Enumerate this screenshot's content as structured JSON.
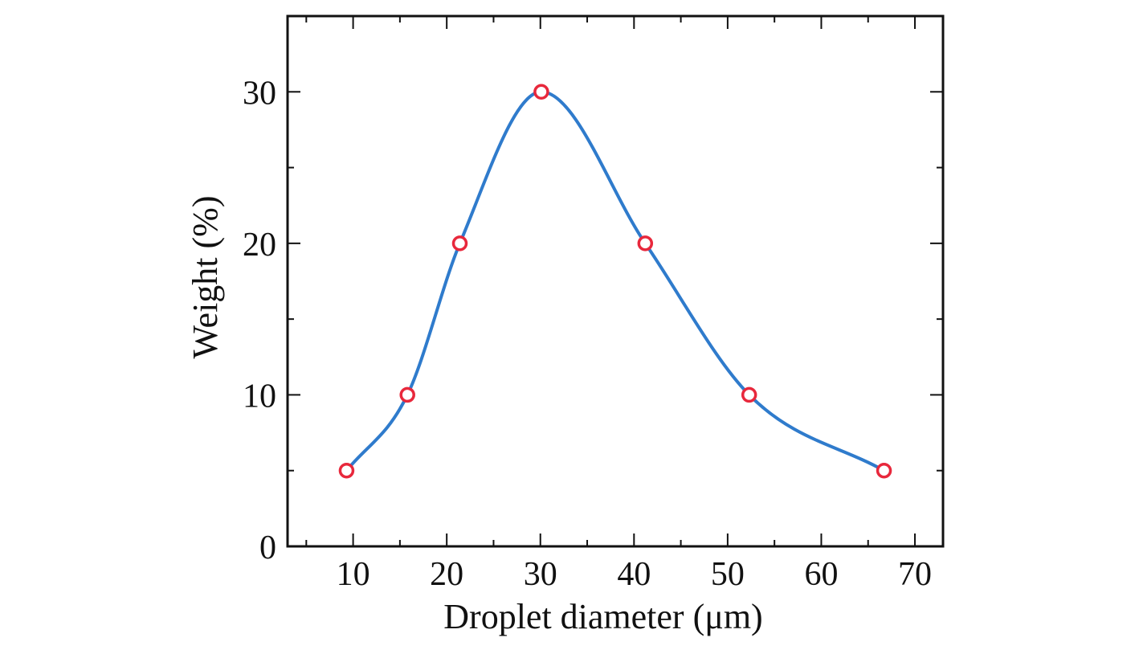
{
  "chart_data": {
    "type": "line",
    "title": "",
    "xlabel": "Droplet diameter (μm)",
    "ylabel": "Weight (%)",
    "xlim": [
      3,
      73
    ],
    "ylim": [
      0,
      35
    ],
    "x_ticks": [
      10,
      20,
      30,
      40,
      50,
      60,
      70
    ],
    "y_ticks": [
      0,
      10,
      20,
      30
    ],
    "x_minor_step": 5,
    "y_minor_step": 5,
    "grid": false,
    "legend": "none",
    "series": [
      {
        "x": [
          9.3,
          15.8,
          21.4,
          30.1,
          41.2,
          52.3,
          66.7
        ],
        "y": [
          5,
          10,
          20,
          30,
          20,
          10,
          5
        ],
        "line_color": "#2f7bcc",
        "marker_color": "#e8283c",
        "marker": "open-circle",
        "smooth": true
      }
    ]
  }
}
